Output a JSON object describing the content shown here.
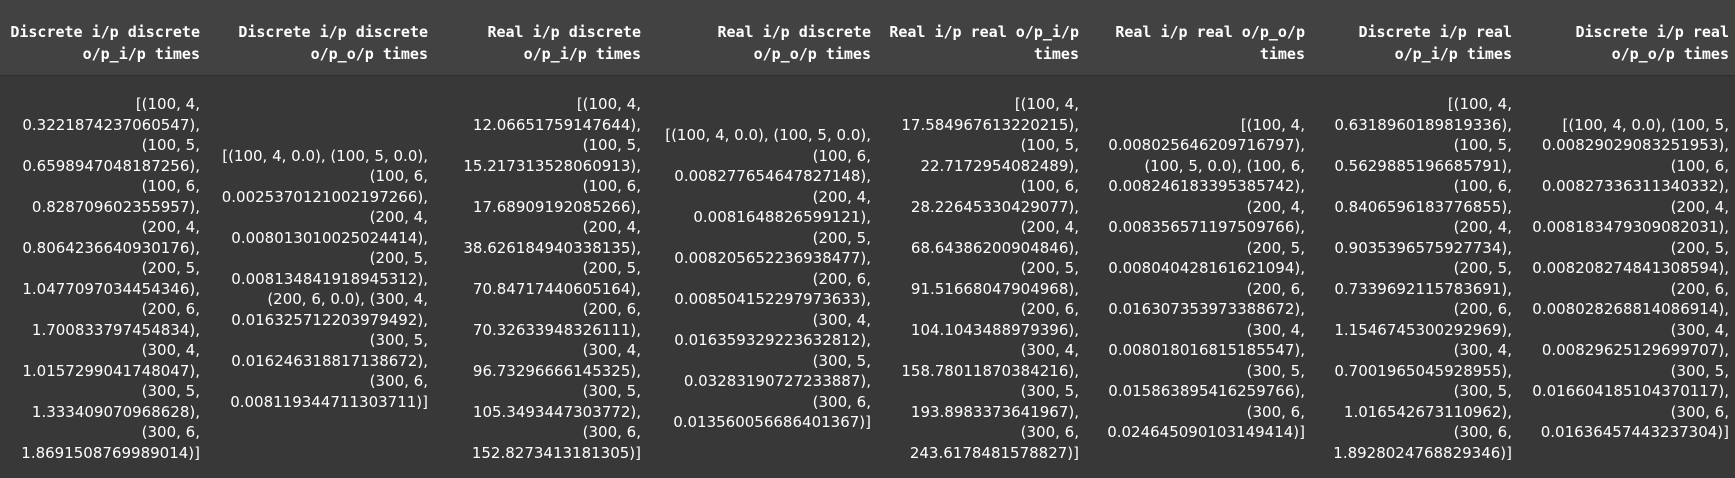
{
  "columns": [
    "Discrete i/p discrete o/p_i/p times",
    "Discrete i/p discrete o/p_o/p times",
    "Real i/p discrete o/p_i/p times",
    "Real i/p discrete o/p_o/p times",
    "Real i/p real o/p_i/p times",
    "Real i/p real o/p_o/p times",
    "Discrete i/p real o/p_i/p times",
    "Discrete i/p real o/p_o/p times"
  ],
  "row": [
    "[(100, 4, 0.3221874237060547), (100, 5, 0.6598947048187256), (100, 6, 0.828709602355957), (200, 4, 0.8064236640930176), (200, 5, 1.0477097034454346), (200, 6, 1.700833797454834), (300, 4, 1.0157299041748047), (300, 5, 1.333409070968628), (300, 6, 1.8691508769989014)]",
    "[(100, 4, 0.0), (100, 5, 0.0), (100, 6, 0.0025370121002197266), (200, 4, 0.008013010025024414), (200, 5, 0.008134841918945312), (200, 6, 0.0), (300, 4, 0.016325712203979492), (300, 5, 0.016246318817138672), (300, 6, 0.008119344711303711)]",
    "[(100, 4, 12.06651759147644), (100, 5, 15.217313528060913), (100, 6, 17.68909192085266), (200, 4, 38.626184940338135), (200, 5, 70.84717440605164), (200, 6, 70.32633948326111), (300, 4, 96.73296666145325), (300, 5, 105.3493447303772), (300, 6, 152.8273413181305)]",
    "[(100, 4, 0.0), (100, 5, 0.0), (100, 6, 0.008277654647827148), (200, 4, 0.0081648826599121), (200, 5, 0.008205652236938477), (200, 6, 0.008504152297973633), (300, 4, 0.016359329223632812), (300, 5, 0.03283190727233887), (300, 6, 0.013560056686401367)]",
    "[(100, 4, 17.584967613220215), (100, 5, 22.7172954082489), (100, 6, 28.22645330429077), (200, 4, 68.64386200904846), (200, 5, 91.51668047904968), (200, 6, 104.1043488979396), (300, 4, 158.78011870384216), (300, 5, 193.8983373641967), (300, 6, 243.6178481578827)]",
    "[(100, 4, 0.008025646209716797), (100, 5, 0.0), (100, 6, 0.008246183395385742), (200, 4, 0.008356571197509766), (200, 5, 0.008040428161621094), (200, 6, 0.016307353973388672), (300, 4, 0.008018016815185547), (300, 5, 0.015863895416259766), (300, 6, 0.024645090103149414)]",
    "[(100, 4, 0.6318960189819336), (100, 5, 0.5629885196685791), (100, 6, 0.8406596183776855), (200, 4, 0.9035396575927734), (200, 5, 0.7339692115783691), (200, 6, 1.1546745300292969), (300, 4, 0.7001965045928955), (300, 5, 1.016542673110962), (300, 6, 1.8928024768829346)]",
    "[(100, 4, 0.0), (100, 5, 0.00829029083251953), (100, 6, 0.00827336311340332), (200, 4, 0.008183479309082031), (200, 5, 0.008208274841308594), (200, 6, 0.008028268814086914), (300, 4, 0.00829625129699707), (300, 5, 0.016604185104370117), (300, 6, 0.01636457443237304)]"
  ]
}
